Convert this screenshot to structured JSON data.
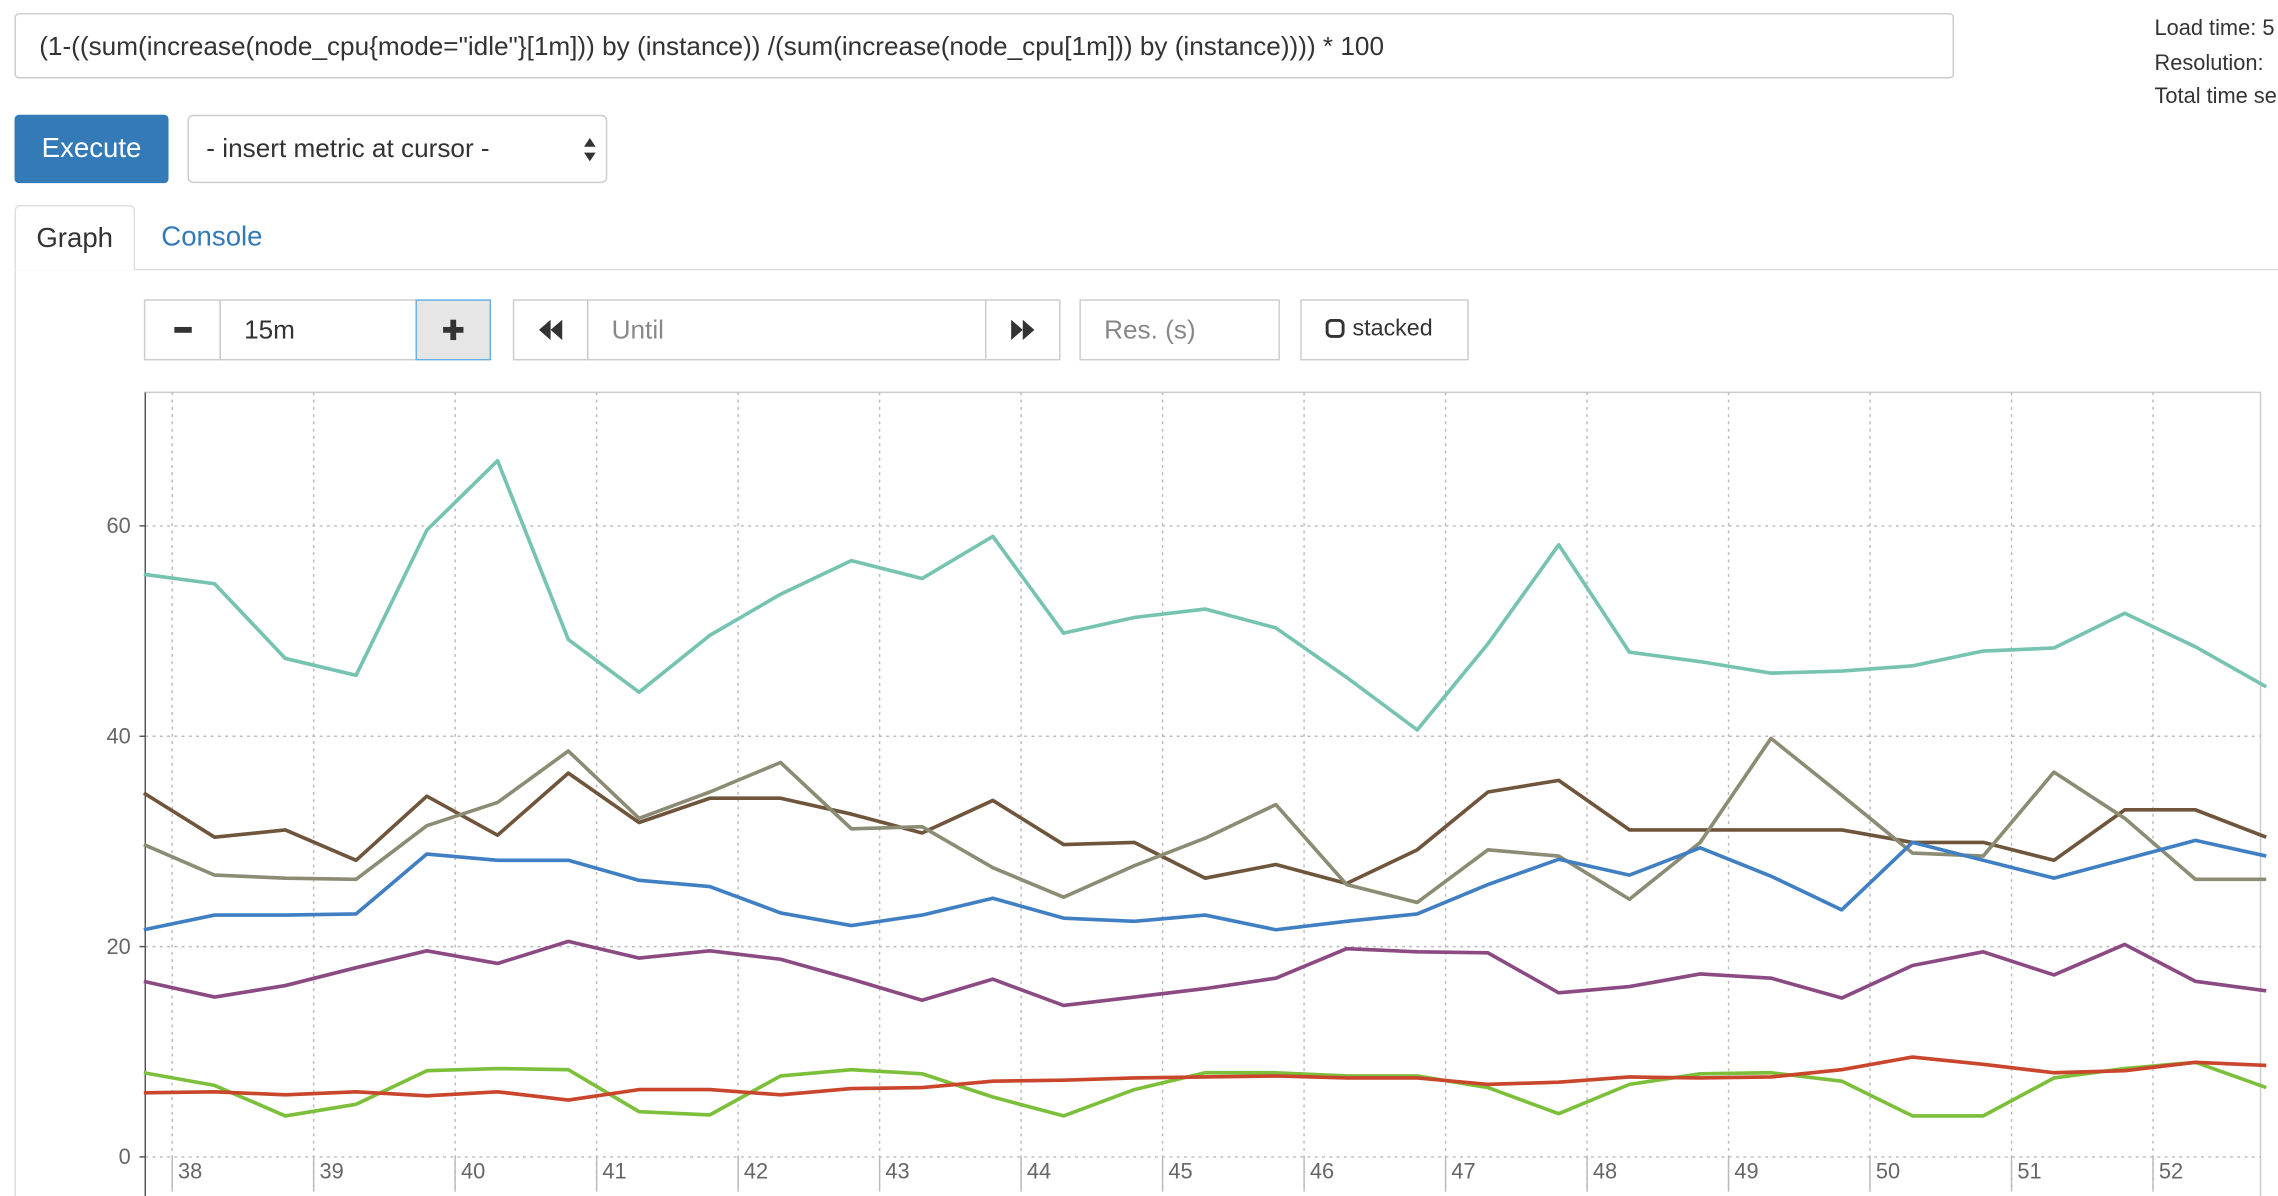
{
  "query": "(1-((sum(increase(node_cpu{mode=\"idle\"}[1m])) by (instance))  /(sum(increase(node_cpu[1m])) by (instance)))) * 100",
  "execute_button": "Execute",
  "metric_select": "- insert metric at cursor -",
  "tabs": [
    "Graph",
    "Console"
  ],
  "range_input": "15m",
  "until_placeholder": "Until",
  "resolution_placeholder": "Res. (s)",
  "stacked_label": "stacked",
  "stats": [
    "Load time: 5",
    "Resolution:",
    "Total time se"
  ],
  "chart_data": {
    "type": "line",
    "x": [
      37.8,
      38.3,
      38.8,
      39.3,
      39.8,
      40.3,
      40.8,
      41.3,
      41.8,
      42.3,
      42.8,
      43.3,
      43.8,
      44.3,
      44.8,
      45.3,
      45.8,
      46.3,
      46.8,
      47.3,
      47.8,
      48.3,
      48.8,
      49.3,
      49.8,
      50.3,
      50.8,
      51.3,
      51.8,
      52.3,
      52.8
    ],
    "xlim": [
      37.81,
      52.76
    ],
    "xticks": [
      38,
      39,
      40,
      41,
      42,
      43,
      44,
      45,
      46,
      47,
      48,
      49,
      50,
      51,
      52
    ],
    "ylim": [
      -3.3,
      72.7
    ],
    "yticks": [
      0,
      20,
      40,
      60
    ],
    "grid": true,
    "series": [
      {
        "color": "#76c3b1",
        "values": [
          55.4,
          54.5,
          47.4,
          45.8,
          59.6,
          66.2,
          49.2,
          44.2,
          49.6,
          53.5,
          56.7,
          55,
          59,
          49.8,
          51.3,
          52.1,
          50.3,
          45.6,
          40.6,
          48.8,
          58.2,
          48,
          47.1,
          46,
          46.2,
          46.7,
          48.1,
          48.4,
          51.7,
          48.5,
          44.7
        ]
      },
      {
        "color": "#6e553b",
        "values": [
          34.6,
          30.4,
          31.1,
          28.2,
          34.3,
          30.6,
          36.5,
          31.8,
          34.1,
          34.1,
          32.6,
          30.8,
          33.9,
          29.7,
          29.9,
          26.5,
          27.8,
          26,
          29.2,
          34.7,
          35.8,
          31.1,
          31.1,
          31.1,
          31.1,
          29.9,
          29.9,
          28.2,
          33,
          33,
          30.4
        ]
      },
      {
        "color": "#8c8c74",
        "values": [
          29.7,
          26.8,
          26.5,
          26.4,
          31.5,
          33.7,
          38.6,
          32.2,
          34.7,
          37.5,
          31.2,
          31.4,
          27.5,
          24.7,
          27.7,
          30.3,
          33.5,
          25.9,
          24.2,
          29.2,
          28.6,
          24.5,
          29.9,
          39.8,
          34.4,
          28.9,
          28.6,
          36.6,
          32.2,
          26.4,
          26.4
        ]
      },
      {
        "color": "#3f7fc2",
        "values": [
          21.6,
          23,
          23,
          23.1,
          28.8,
          28.2,
          28.2,
          26.3,
          25.7,
          23.2,
          22,
          23,
          24.6,
          22.7,
          22.4,
          23,
          21.6,
          22.4,
          23.1,
          25.9,
          28.3,
          26.8,
          29.4,
          26.7,
          23.5,
          29.9,
          28.2,
          26.5,
          28.3,
          30.1,
          28.6
        ]
      },
      {
        "color": "#8b4a82",
        "values": [
          16.7,
          15.2,
          16.3,
          18,
          19.6,
          18.4,
          20.5,
          18.9,
          19.6,
          18.8,
          16.9,
          14.9,
          16.9,
          14.4,
          15.2,
          16,
          17,
          19.8,
          19.5,
          19.4,
          15.6,
          16.2,
          17.4,
          17,
          15.1,
          18.2,
          19.5,
          17.3,
          20.2,
          16.7,
          15.8
        ]
      },
      {
        "color": "#7cbf3a",
        "values": [
          8,
          6.8,
          3.9,
          5,
          8.2,
          8.4,
          8.3,
          4.3,
          4,
          7.7,
          8.3,
          7.9,
          5.7,
          3.9,
          6.4,
          8,
          8,
          7.7,
          7.7,
          6.6,
          4.1,
          6.9,
          7.9,
          8,
          7.2,
          3.9,
          3.9,
          7.5,
          8.4,
          9,
          6.6
        ]
      },
      {
        "color": "#c9452c",
        "values": [
          6.1,
          6.2,
          5.9,
          6.2,
          5.8,
          6.2,
          5.4,
          6.4,
          6.4,
          5.9,
          6.5,
          6.6,
          7.2,
          7.3,
          7.5,
          7.6,
          7.7,
          7.5,
          7.5,
          6.9,
          7.1,
          7.6,
          7.5,
          7.6,
          8.3,
          9.5,
          8.8,
          8,
          8.2,
          9,
          8.7
        ]
      }
    ]
  }
}
